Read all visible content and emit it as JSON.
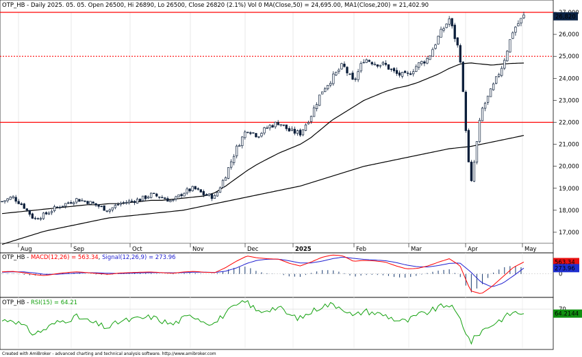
{
  "header": {
    "text": "OTP_HB - Daily 2025. 05. 05. Open 26500, Hi 26890, Lo 26500, Close 26820 (2.1%) Vol 0 MA(Close,50) = 24,695.00, MA1(Close,200) = 21,402.90"
  },
  "footer": {
    "text": "Created with AmiBroker - advanced charting and technical analysis software. http://www.amibroker.com"
  },
  "colors": {
    "candle_up": "#ffffff",
    "candle_down": "#0b1e3a",
    "ma": "#000000",
    "hline": "#ff0000",
    "macd": "#ff0000",
    "signal": "#1f1fd0",
    "hist": "#2b4a7a",
    "rsi": "#13a10e",
    "close_label_bg": "#0b2345",
    "macd_label_bg": "#e81010",
    "signal_label_bg": "#1f2fd0",
    "rsi_label_bg": "#109010"
  },
  "chart_data": [
    {
      "type": "candlestick",
      "title": "OTP_HB - Daily 2025. 05. 05.",
      "ohlc_last": {
        "open": 26500,
        "high": 26890,
        "low": 26500,
        "close": 26820,
        "change": "2.1%",
        "volume": 0
      },
      "ylim": [
        16500,
        27000
      ],
      "y_ticks": [
        "17,000",
        "18,000",
        "19,000",
        "20,000",
        "21,000",
        "22,000",
        "23,000",
        "24,000",
        "25,000",
        "26,000",
        "27,000"
      ],
      "x_ticks": [
        "Aug",
        "Sep",
        "Oct",
        "Nov",
        "Dec",
        "2025",
        "Feb",
        "Mar",
        "Apr",
        "May"
      ],
      "horizontal_lines": [
        {
          "value": 27000,
          "style": "solid"
        },
        {
          "value": 25000,
          "style": "dotted"
        },
        {
          "value": 22000,
          "style": "solid"
        }
      ],
      "last_price_label": "26,820",
      "ma50_last": 24695.0,
      "ma200_last": 21402.9,
      "closes_weekly_approx": [
        18400,
        18600,
        18200,
        17600,
        17800,
        18100,
        18300,
        18500,
        18400,
        18200,
        18000,
        18300,
        18400,
        18500,
        18700,
        18600,
        18400,
        18800,
        19000,
        18700,
        18600,
        19600,
        20800,
        21700,
        21400,
        21800,
        22000,
        21600,
        21500,
        22300,
        23400,
        24000,
        24600,
        23800,
        24900,
        24700,
        24600,
        24200,
        24100,
        24600,
        24900,
        25900,
        26700,
        25100,
        19000,
        22500,
        23500,
        24600,
        26200,
        26820
      ],
      "ma50_weekly_approx": [
        17850,
        17900,
        17950,
        18000,
        18050,
        18100,
        18150,
        18200,
        18250,
        18250,
        18300,
        18300,
        18350,
        18400,
        18450,
        18450,
        18500,
        18550,
        18600,
        18650,
        18800,
        19100,
        19450,
        19800,
        20100,
        20350,
        20600,
        20800,
        21000,
        21300,
        21700,
        22100,
        22400,
        22700,
        23000,
        23200,
        23400,
        23550,
        23650,
        23800,
        24000,
        24200,
        24450,
        24650,
        24700,
        24650,
        24600,
        24650,
        24680,
        24695
      ],
      "ma200_weekly_approx": [
        16450,
        16600,
        16750,
        16900,
        17050,
        17150,
        17250,
        17350,
        17450,
        17550,
        17650,
        17700,
        17750,
        17800,
        17850,
        17900,
        17950,
        18000,
        18100,
        18200,
        18300,
        18400,
        18500,
        18600,
        18700,
        18800,
        18900,
        19000,
        19100,
        19250,
        19400,
        19550,
        19700,
        19850,
        20000,
        20100,
        20200,
        20300,
        20400,
        20500,
        20600,
        20700,
        20800,
        20850,
        20900,
        21000,
        21100,
        21200,
        21300,
        21402.9
      ]
    },
    {
      "type": "line",
      "title": "OTP_HB - MACD(12,26) = 563.34, Signal(12,26,9) = 273.96",
      "series": [
        {
          "name": "MACD(12,26)",
          "last": 563.34
        },
        {
          "name": "Signal(12,26,9)",
          "last": 273.96
        }
      ],
      "y_ticks": [
        "0"
      ],
      "macd_weekly_approx": [
        100,
        120,
        60,
        -30,
        -80,
        0,
        60,
        100,
        60,
        20,
        -20,
        40,
        60,
        80,
        90,
        60,
        30,
        90,
        120,
        80,
        60,
        300,
        600,
        850,
        760,
        720,
        700,
        500,
        380,
        560,
        780,
        900,
        860,
        600,
        640,
        620,
        560,
        380,
        240,
        260,
        380,
        560,
        720,
        400,
        -800,
        -950,
        -600,
        -150,
        300,
        563.34
      ],
      "signal_weekly_approx": [
        80,
        100,
        100,
        50,
        -20,
        -20,
        10,
        40,
        60,
        50,
        30,
        20,
        30,
        50,
        60,
        60,
        50,
        60,
        80,
        80,
        70,
        130,
        280,
        500,
        650,
        700,
        700,
        620,
        520,
        520,
        600,
        720,
        800,
        740,
        690,
        660,
        630,
        540,
        420,
        340,
        330,
        400,
        500,
        520,
        100,
        -400,
        -620,
        -450,
        -100,
        273.96
      ]
    },
    {
      "type": "line",
      "title": "OTP_HB - RSI(15) = 64.21",
      "series": [
        {
          "name": "RSI(15)",
          "last": 64.2144
        }
      ],
      "last_label": "64.2144",
      "y_ticks": [
        "70"
      ],
      "ylim": [
        20,
        85
      ],
      "rsi_weekly_approx": [
        55,
        57,
        48,
        38,
        44,
        52,
        56,
        60,
        55,
        50,
        46,
        54,
        56,
        58,
        60,
        55,
        50,
        58,
        62,
        54,
        52,
        65,
        74,
        80,
        66,
        70,
        72,
        62,
        58,
        66,
        74,
        76,
        72,
        60,
        68,
        65,
        62,
        56,
        54,
        62,
        66,
        72,
        76,
        58,
        27,
        42,
        50,
        58,
        66,
        64.21
      ]
    }
  ]
}
